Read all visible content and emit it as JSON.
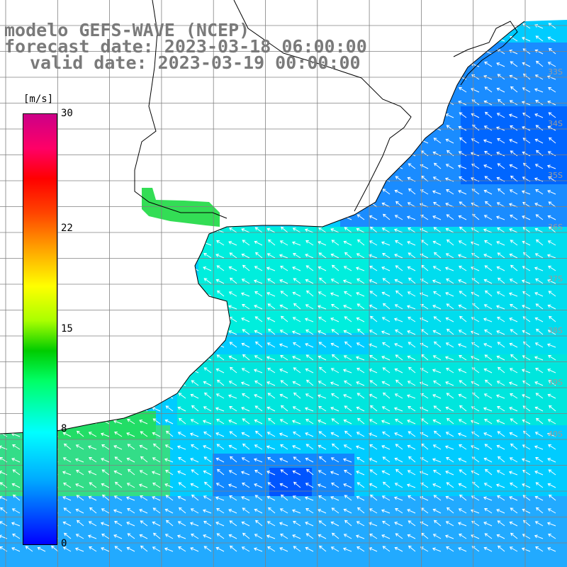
{
  "title": {
    "line1": "modelo GEFS-WAVE (NCEP)",
    "line2": "forecast date: 2023-03-18 06:00:00",
    "line3": "valid date: 2023-03-19 00:00:00"
  },
  "colorbar": {
    "unit": "[m/s]",
    "ticks": [
      {
        "label": "30",
        "value": 30
      },
      {
        "label": "22",
        "value": 22
      },
      {
        "label": "15",
        "value": 15
      },
      {
        "label": "8",
        "value": 8
      },
      {
        "label": "0",
        "value": 0
      }
    ],
    "colors": [
      "#0000ff",
      "#00aaff",
      "#00ffff",
      "#00ff66",
      "#00cc00",
      "#aaff00",
      "#ffff00",
      "#ffaa00",
      "#ff4400",
      "#ff0000",
      "#cc0088"
    ]
  },
  "lat_labels": [
    "33S",
    "34S",
    "35S",
    "36S",
    "37S",
    "38S",
    "39S",
    "40S"
  ],
  "colors": {
    "land": "#ffffff",
    "grid": "#808080",
    "coast": "#000000",
    "arrows": "#ffffff",
    "title": "#7a7a7a"
  }
}
